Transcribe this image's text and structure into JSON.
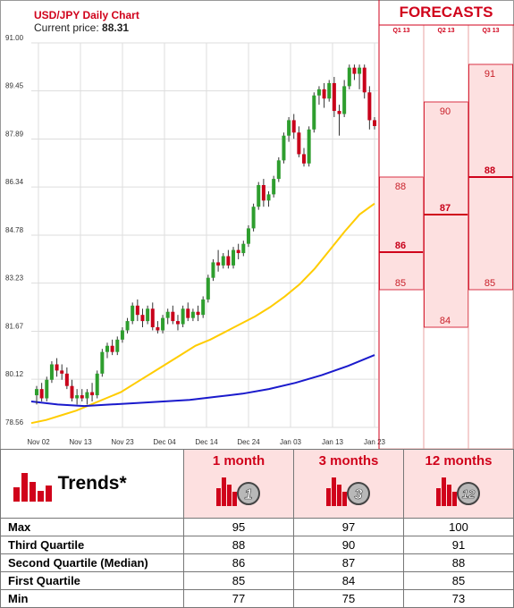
{
  "chart_header": {
    "title": "USD/JPY Daily Chart",
    "price_label": "Current price:",
    "price_value": "88.31"
  },
  "forecasts_title": "FORECASTS",
  "chart_data": [
    {
      "type": "candlestick",
      "title": "USD/JPY Daily Chart",
      "y_ticks": [
        "91.00",
        "89.45",
        "87.89",
        "86.34",
        "84.78",
        "83.23",
        "81.67",
        "80.12",
        "78.56"
      ],
      "ylim": [
        78.56,
        91.0
      ],
      "x_tick_labels": [
        "Nov 02",
        "Nov 13",
        "Nov 23",
        "Dec 04",
        "Dec 14",
        "Dec 24",
        "Jan 03",
        "Jan 13",
        "Jan 23"
      ],
      "grid": true,
      "candles": [
        {
          "o": 79.6,
          "h": 79.9,
          "l": 79.3,
          "c": 79.8
        },
        {
          "o": 79.8,
          "h": 80.0,
          "l": 79.4,
          "c": 79.5
        },
        {
          "o": 79.5,
          "h": 80.2,
          "l": 79.4,
          "c": 80.1
        },
        {
          "o": 80.1,
          "h": 80.7,
          "l": 80.0,
          "c": 80.6
        },
        {
          "o": 80.6,
          "h": 80.8,
          "l": 80.2,
          "c": 80.4
        },
        {
          "o": 80.4,
          "h": 80.6,
          "l": 80.1,
          "c": 80.3
        },
        {
          "o": 80.3,
          "h": 80.5,
          "l": 79.8,
          "c": 79.9
        },
        {
          "o": 79.9,
          "h": 80.1,
          "l": 79.4,
          "c": 79.5
        },
        {
          "o": 79.5,
          "h": 79.8,
          "l": 79.3,
          "c": 79.6
        },
        {
          "o": 79.6,
          "h": 79.8,
          "l": 79.4,
          "c": 79.5
        },
        {
          "o": 79.5,
          "h": 79.8,
          "l": 79.3,
          "c": 79.7
        },
        {
          "o": 79.7,
          "h": 80.0,
          "l": 79.4,
          "c": 79.6
        },
        {
          "o": 79.6,
          "h": 80.4,
          "l": 79.5,
          "c": 80.3
        },
        {
          "o": 80.3,
          "h": 81.1,
          "l": 80.2,
          "c": 81.0
        },
        {
          "o": 81.0,
          "h": 81.3,
          "l": 80.8,
          "c": 81.2
        },
        {
          "o": 81.2,
          "h": 81.4,
          "l": 80.9,
          "c": 81.0
        },
        {
          "o": 81.0,
          "h": 81.5,
          "l": 80.9,
          "c": 81.4
        },
        {
          "o": 81.4,
          "h": 81.8,
          "l": 81.3,
          "c": 81.7
        },
        {
          "o": 81.7,
          "h": 82.1,
          "l": 81.6,
          "c": 82.0
        },
        {
          "o": 82.0,
          "h": 82.6,
          "l": 81.9,
          "c": 82.5
        },
        {
          "o": 82.5,
          "h": 82.7,
          "l": 82.0,
          "c": 82.2
        },
        {
          "o": 82.2,
          "h": 82.4,
          "l": 81.8,
          "c": 82.0
        },
        {
          "o": 82.0,
          "h": 82.5,
          "l": 81.9,
          "c": 82.4
        },
        {
          "o": 82.4,
          "h": 82.6,
          "l": 81.7,
          "c": 81.8
        },
        {
          "o": 81.8,
          "h": 82.0,
          "l": 81.6,
          "c": 81.7
        },
        {
          "o": 81.7,
          "h": 82.2,
          "l": 81.6,
          "c": 82.1
        },
        {
          "o": 82.1,
          "h": 82.4,
          "l": 81.9,
          "c": 82.3
        },
        {
          "o": 82.3,
          "h": 82.5,
          "l": 81.9,
          "c": 82.0
        },
        {
          "o": 82.0,
          "h": 82.2,
          "l": 81.7,
          "c": 81.9
        },
        {
          "o": 81.9,
          "h": 82.5,
          "l": 81.8,
          "c": 82.4
        },
        {
          "o": 82.4,
          "h": 82.6,
          "l": 82.0,
          "c": 82.1
        },
        {
          "o": 82.1,
          "h": 82.4,
          "l": 82.0,
          "c": 82.3
        },
        {
          "o": 82.3,
          "h": 82.5,
          "l": 82.0,
          "c": 82.2
        },
        {
          "o": 82.2,
          "h": 82.8,
          "l": 82.1,
          "c": 82.7
        },
        {
          "o": 82.7,
          "h": 83.5,
          "l": 82.6,
          "c": 83.4
        },
        {
          "o": 83.4,
          "h": 84.0,
          "l": 83.3,
          "c": 83.9
        },
        {
          "o": 83.9,
          "h": 84.3,
          "l": 83.6,
          "c": 83.8
        },
        {
          "o": 83.8,
          "h": 84.2,
          "l": 83.7,
          "c": 84.1
        },
        {
          "o": 84.1,
          "h": 84.3,
          "l": 83.7,
          "c": 83.8
        },
        {
          "o": 83.8,
          "h": 84.4,
          "l": 83.7,
          "c": 84.3
        },
        {
          "o": 84.3,
          "h": 84.5,
          "l": 84.0,
          "c": 84.2
        },
        {
          "o": 84.2,
          "h": 84.6,
          "l": 84.1,
          "c": 84.5
        },
        {
          "o": 84.5,
          "h": 85.1,
          "l": 84.4,
          "c": 85.0
        },
        {
          "o": 85.0,
          "h": 85.8,
          "l": 84.9,
          "c": 85.7
        },
        {
          "o": 85.7,
          "h": 86.5,
          "l": 85.6,
          "c": 86.4
        },
        {
          "o": 86.4,
          "h": 86.6,
          "l": 85.7,
          "c": 85.9
        },
        {
          "o": 85.9,
          "h": 86.2,
          "l": 85.7,
          "c": 86.1
        },
        {
          "o": 86.1,
          "h": 86.7,
          "l": 86.0,
          "c": 86.6
        },
        {
          "o": 86.6,
          "h": 87.3,
          "l": 86.5,
          "c": 87.2
        },
        {
          "o": 87.2,
          "h": 88.1,
          "l": 87.1,
          "c": 88.0
        },
        {
          "o": 88.0,
          "h": 88.6,
          "l": 87.8,
          "c": 88.5
        },
        {
          "o": 88.5,
          "h": 88.7,
          "l": 87.9,
          "c": 88.1
        },
        {
          "o": 88.1,
          "h": 88.3,
          "l": 87.3,
          "c": 87.4
        },
        {
          "o": 87.4,
          "h": 87.6,
          "l": 87.0,
          "c": 87.1
        },
        {
          "o": 87.1,
          "h": 88.3,
          "l": 87.0,
          "c": 88.2
        },
        {
          "o": 88.2,
          "h": 89.4,
          "l": 88.1,
          "c": 89.3
        },
        {
          "o": 89.3,
          "h": 89.6,
          "l": 89.0,
          "c": 89.5
        },
        {
          "o": 89.5,
          "h": 89.7,
          "l": 88.9,
          "c": 89.2
        },
        {
          "o": 89.2,
          "h": 89.8,
          "l": 89.1,
          "c": 89.7
        },
        {
          "o": 89.7,
          "h": 89.9,
          "l": 88.6,
          "c": 88.8
        },
        {
          "o": 88.8,
          "h": 89.0,
          "l": 88.0,
          "c": 88.7
        },
        {
          "o": 88.7,
          "h": 89.8,
          "l": 88.6,
          "c": 89.6
        },
        {
          "o": 89.6,
          "h": 90.3,
          "l": 89.5,
          "c": 90.2
        },
        {
          "o": 90.2,
          "h": 90.3,
          "l": 89.8,
          "c": 90.0
        },
        {
          "o": 90.0,
          "h": 90.3,
          "l": 89.5,
          "c": 90.2
        },
        {
          "o": 90.2,
          "h": 90.3,
          "l": 89.2,
          "c": 89.4
        },
        {
          "o": 89.4,
          "h": 89.6,
          "l": 88.2,
          "c": 88.5
        },
        {
          "o": 88.5,
          "h": 88.6,
          "l": 88.2,
          "c": 88.31
        }
      ],
      "moving_averages": [
        {
          "color": "#ffcc00",
          "values": [
            78.7,
            78.8,
            78.95,
            79.1,
            79.3,
            79.5,
            79.7,
            80.0,
            80.3,
            80.6,
            80.9,
            81.2,
            81.4,
            81.65,
            81.9,
            82.15,
            82.45,
            82.8,
            83.2,
            83.7,
            84.3,
            84.9,
            85.45,
            85.8
          ]
        },
        {
          "color": "#1a1acc",
          "values": [
            79.4,
            79.3,
            79.25,
            79.3,
            79.35,
            79.4,
            79.45,
            79.55,
            79.65,
            79.8,
            80.0,
            80.25,
            80.55,
            80.9
          ]
        }
      ]
    },
    {
      "type": "forecast-ranges",
      "periods": [
        {
          "name": "Q1 13",
          "q3": 88,
          "median": 86,
          "q1": 85
        },
        {
          "name": "Q2 13",
          "q3": 90,
          "median": 87,
          "q1": 84
        },
        {
          "name": "Q3 13",
          "q3": 91,
          "median": 88,
          "q1": 85
        }
      ]
    }
  ],
  "trends_table": {
    "title": "Trends*",
    "columns": [
      {
        "label": "1 month",
        "badge": "1"
      },
      {
        "label": "3 months",
        "badge": "3"
      },
      {
        "label": "12 months",
        "badge": "12"
      }
    ],
    "rows": [
      {
        "label": "Max",
        "values": [
          "95",
          "97",
          "100"
        ]
      },
      {
        "label": "Third Quartile",
        "values": [
          "88",
          "90",
          "91"
        ]
      },
      {
        "label": "Second Quartile (Median)",
        "values": [
          "86",
          "87",
          "88"
        ]
      },
      {
        "label": "First Quartile",
        "values": [
          "85",
          "84",
          "85"
        ]
      },
      {
        "label": "Min",
        "values": [
          "77",
          "75",
          "73"
        ]
      }
    ]
  },
  "colors": {
    "accent": "#d0021b",
    "bull": "#2e9e2e",
    "bear": "#c8001a",
    "forecast_fill": "#fde0e0"
  }
}
